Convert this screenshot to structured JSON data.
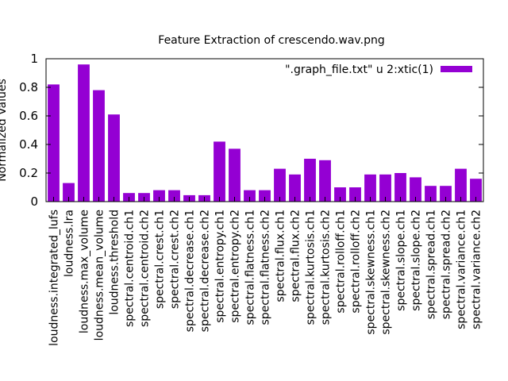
{
  "chart_data": {
    "type": "bar",
    "title": "Feature Extraction of crescendo.wav.png",
    "xlabel": "",
    "ylabel": "Normalized Values",
    "ylim": [
      0,
      1
    ],
    "yticks": [
      "0",
      "0.2",
      "0.4",
      "0.6",
      "0.8",
      "1"
    ],
    "grid": false,
    "legend_position": "top-right",
    "categories": [
      "loudness.integrated_lufs",
      "loudness.lra",
      "loudness.max_volume",
      "loudness.mean_volume",
      "loudness.threshold",
      "spectral.centroid.ch1",
      "spectral.centroid.ch2",
      "spectral.crest.ch1",
      "spectral.crest.ch2",
      "spectral.decrease.ch1",
      "spectral.decrease.ch2",
      "spectral.entropy.ch1",
      "spectral.entropy.ch2",
      "spectral.flatness.ch1",
      "spectral.flatness.ch2",
      "spectral.flux.ch1",
      "spectral.flux.ch2",
      "spectral.kurtosis.ch1",
      "spectral.kurtosis.ch2",
      "spectral.rolloff.ch1",
      "spectral.rolloff.ch2",
      "spectral.skewness.ch1",
      "spectral.skewness.ch2",
      "spectral.slope.ch1",
      "spectral.slope.ch2",
      "spectral.spread.ch1",
      "spectral.spread.ch2",
      "spectral.variance.ch1",
      "spectral.variance.ch2"
    ],
    "series": [
      {
        "name": "\".graph_file.txt\" u 2:xtic(1)",
        "color": "#9400d3",
        "values": [
          0.82,
          0.13,
          0.96,
          0.78,
          0.61,
          0.06,
          0.06,
          0.08,
          0.08,
          0.045,
          0.045,
          0.42,
          0.37,
          0.08,
          0.08,
          0.23,
          0.19,
          0.3,
          0.29,
          0.1,
          0.1,
          0.19,
          0.19,
          0.2,
          0.17,
          0.11,
          0.11,
          0.23,
          0.16
        ]
      }
    ]
  }
}
